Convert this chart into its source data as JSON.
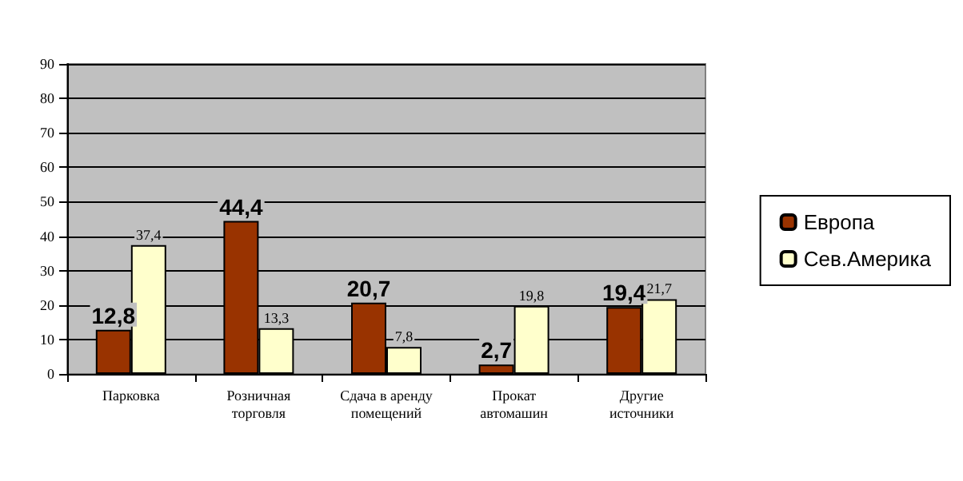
{
  "chart_data": {
    "type": "bar",
    "categories": [
      "Парковка",
      "Розничная торговля",
      "Сдача в аренду помещений",
      "Прокат автомашин",
      "Другие источники"
    ],
    "series": [
      {
        "name": "Европа",
        "color": "#993300",
        "values": [
          12.8,
          44.4,
          20.7,
          2.7,
          19.4
        ],
        "value_labels": [
          "12,8",
          "44,4",
          "20,7",
          "2,7",
          "19,4"
        ]
      },
      {
        "name": "Сев.Америка",
        "color": "#ffffcc",
        "values": [
          37.4,
          13.3,
          7.8,
          19.8,
          21.7
        ],
        "value_labels": [
          "37,4",
          "13,3",
          "7,8",
          "19,8",
          "21,7"
        ]
      }
    ],
    "ylim": [
      0,
      90
    ],
    "yticks": [
      0,
      10,
      20,
      30,
      40,
      50,
      60,
      70,
      80,
      90
    ],
    "grid": "y",
    "legend": "right"
  }
}
